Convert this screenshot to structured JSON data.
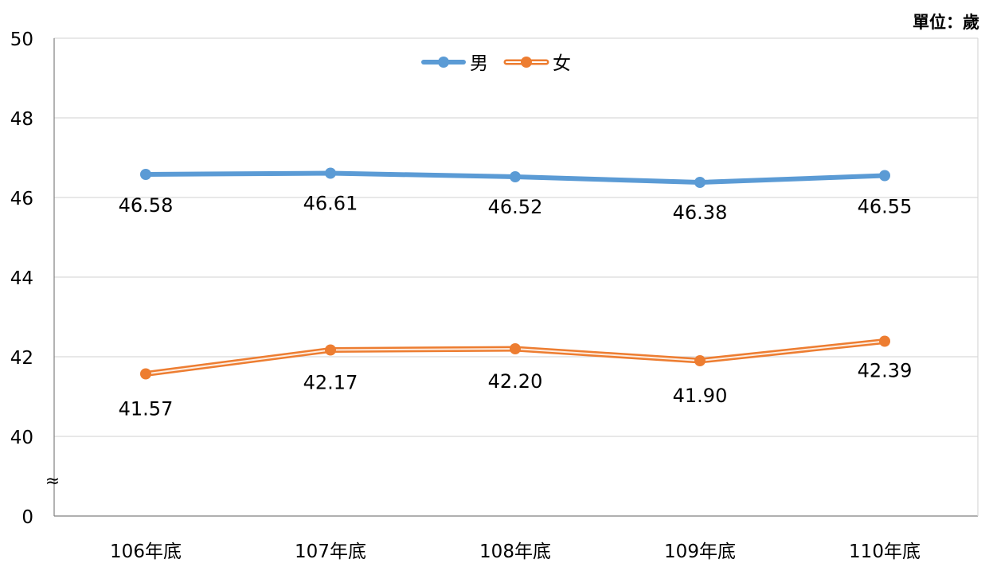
{
  "unit_label": "單位：歲",
  "axis_break_symbol": "≈",
  "colors": {
    "male": "#5b9bd5",
    "female": "#ed7d31",
    "grid": "#d9d9d9",
    "axis": "#808080"
  },
  "chart_data": {
    "type": "line",
    "categories": [
      "106年底",
      "107年底",
      "108年底",
      "109年底",
      "110年底"
    ],
    "series": [
      {
        "name": "男",
        "values": [
          46.58,
          46.61,
          46.52,
          46.38,
          46.55
        ],
        "labels": [
          "46.58",
          "46.61",
          "46.52",
          "46.38",
          "46.55"
        ]
      },
      {
        "name": "女",
        "values": [
          41.57,
          42.17,
          42.2,
          41.9,
          42.39
        ],
        "labels": [
          "41.57",
          "42.17",
          "42.20",
          "41.90",
          "42.39"
        ]
      }
    ],
    "yticks": [
      0,
      40,
      42,
      44,
      46,
      48,
      50
    ],
    "ylim": [
      40,
      50
    ],
    "y_axis_break": [
      0,
      40
    ],
    "legend_position": "top-center",
    "grid": true
  }
}
